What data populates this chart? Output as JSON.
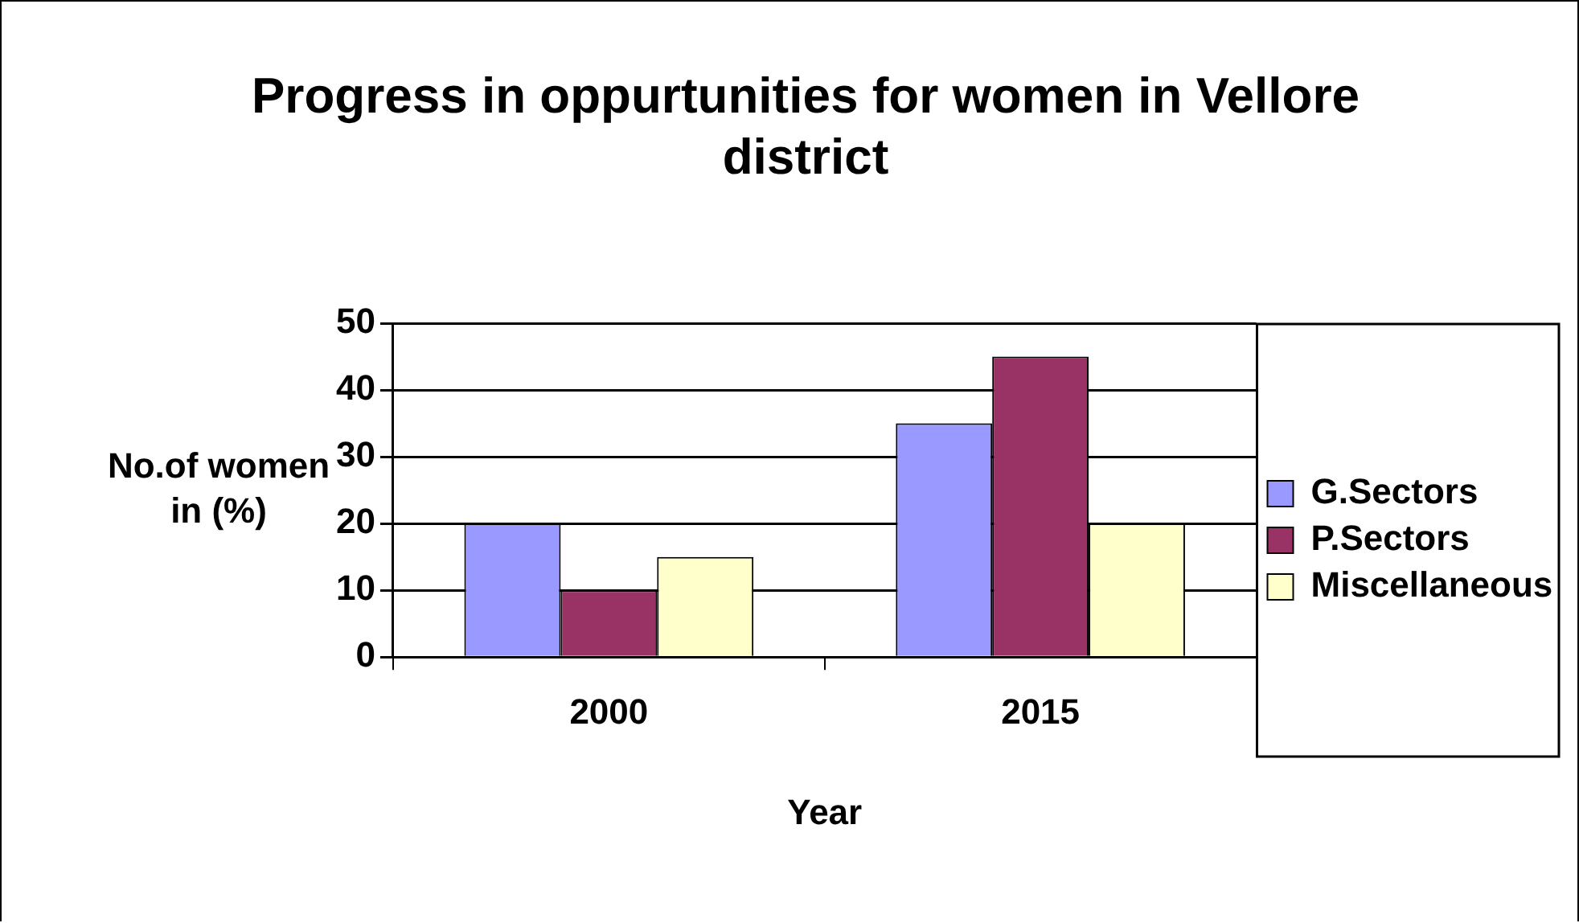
{
  "chart_data": {
    "type": "bar",
    "title": "Progress in oppurtunities for women in Vellore district",
    "xlabel": "Year",
    "ylabel": "No.of women in (%)",
    "categories": [
      "2000",
      "2015"
    ],
    "series": [
      {
        "name": "G.Sectors",
        "color": "#9999ff",
        "values": [
          20,
          35
        ]
      },
      {
        "name": "P.Sectors",
        "color": "#993366",
        "values": [
          10,
          45
        ]
      },
      {
        "name": "Miscellaneous",
        "color": "#ffffcc",
        "values": [
          15,
          20
        ]
      }
    ],
    "ylim": [
      0,
      50
    ],
    "yticks": [
      0,
      10,
      20,
      30,
      40,
      50
    ],
    "grid": "y",
    "legend": "right"
  }
}
